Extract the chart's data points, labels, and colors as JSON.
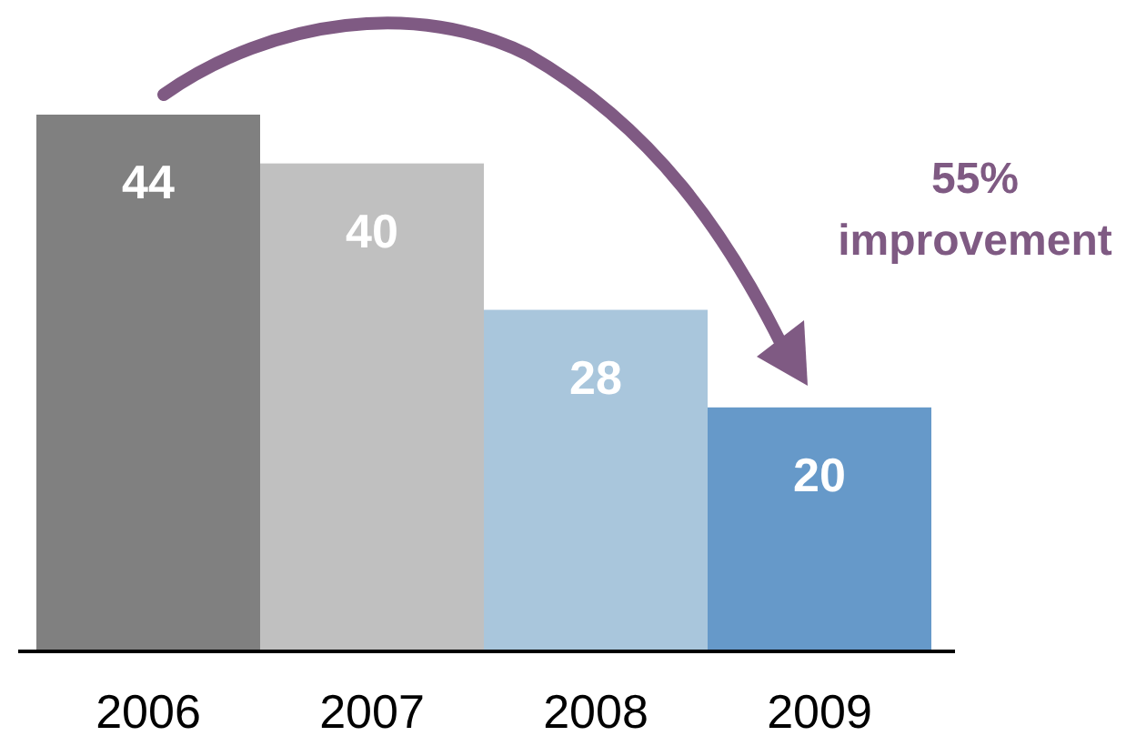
{
  "chart_data": {
    "type": "bar",
    "categories": [
      "2006",
      "2007",
      "2008",
      "2009"
    ],
    "values": [
      44,
      40,
      28,
      20
    ],
    "colors": [
      "#808080",
      "#c0c0c0",
      "#a9c6dc",
      "#6699c9"
    ],
    "data_labels": true,
    "annotations": [
      "55%\nimprovement"
    ]
  }
}
